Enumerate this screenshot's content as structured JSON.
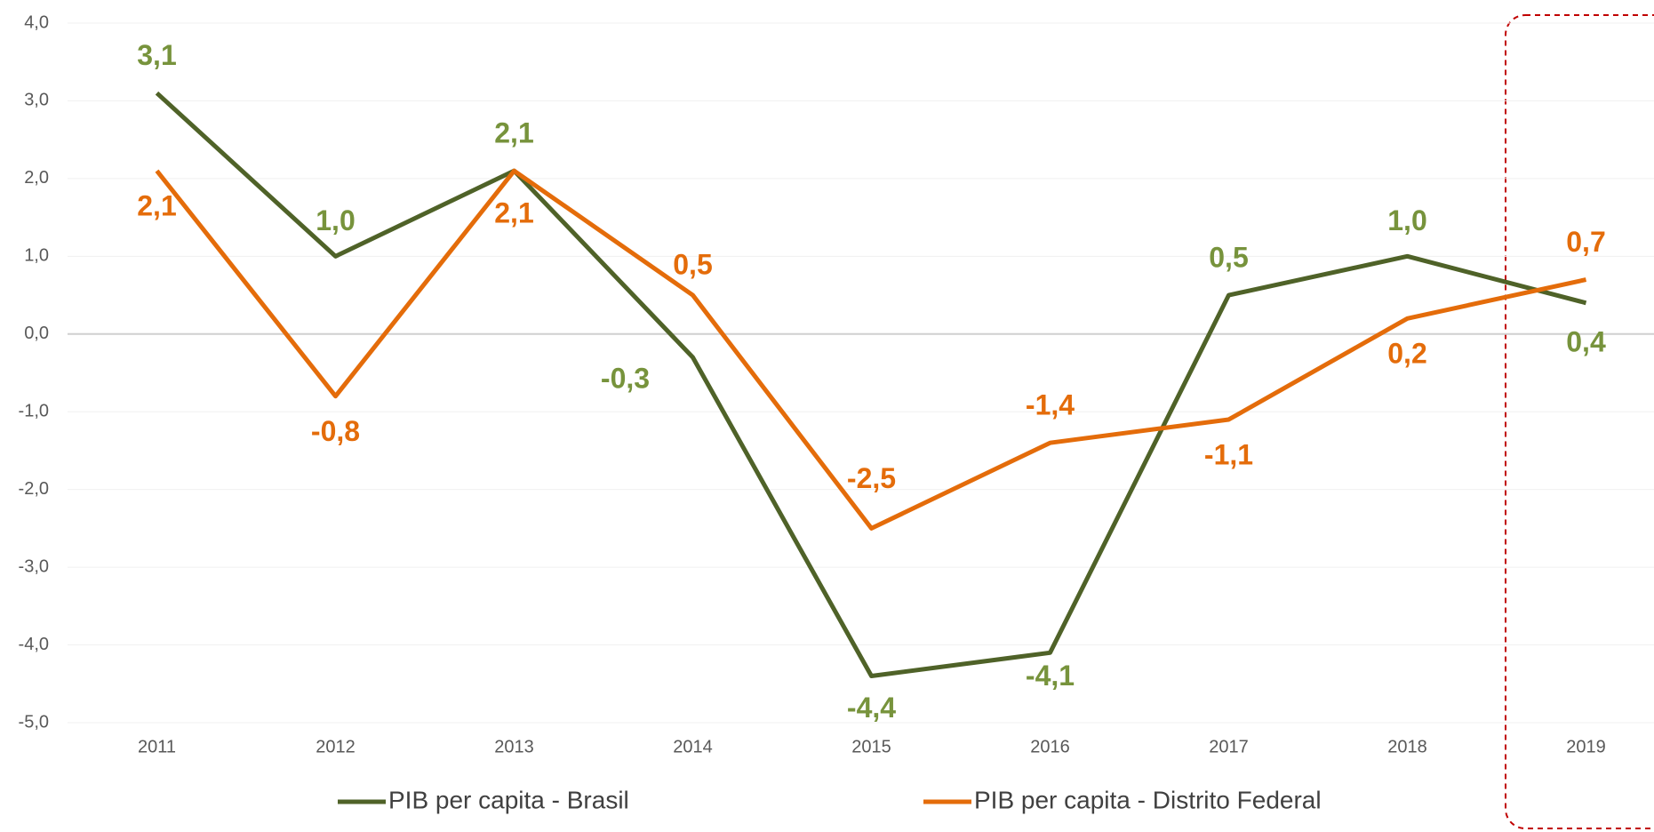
{
  "chart_data": {
    "type": "line",
    "categories": [
      "2011",
      "2012",
      "2013",
      "2014",
      "2015",
      "2016",
      "2017",
      "2018",
      "2019"
    ],
    "series": [
      {
        "name": "PIB per capita - Brasil",
        "color": "#4f6228",
        "label_color": "#77933c",
        "values": [
          3.1,
          1.0,
          2.1,
          -0.3,
          -4.4,
          -4.1,
          0.5,
          1.0,
          0.4
        ],
        "value_labels": [
          "3,1",
          "1,0",
          "2,1",
          "-0,3",
          "-4,4",
          "-4,1",
          "0,5",
          "1,0",
          "0,4"
        ]
      },
      {
        "name": "PIB per capita - Distrito Federal",
        "color": "#e46c0a",
        "label_color": "#e46c0a",
        "values": [
          2.1,
          -0.8,
          2.1,
          0.5,
          -2.5,
          -1.4,
          -1.1,
          0.2,
          0.7
        ],
        "value_labels": [
          "2,1",
          "-0,8",
          "2,1",
          "0,5",
          "-2,5",
          "-1,4",
          "-1,1",
          "0,2",
          "0,7"
        ]
      }
    ],
    "ylim": [
      -5,
      4
    ],
    "yticks": [
      {
        "value": -5,
        "label": "-5,0"
      },
      {
        "value": -4,
        "label": "-4,0"
      },
      {
        "value": -3,
        "label": "-3,0"
      },
      {
        "value": -2,
        "label": "-2,0"
      },
      {
        "value": -1,
        "label": "-1,0"
      },
      {
        "value": 0,
        "label": "0,0"
      },
      {
        "value": 1,
        "label": "1,0"
      },
      {
        "value": 2,
        "label": "2,0"
      },
      {
        "value": 3,
        "label": "3,0"
      },
      {
        "value": 4,
        "label": "4,0"
      }
    ],
    "grid": true,
    "legend": "bottom"
  }
}
